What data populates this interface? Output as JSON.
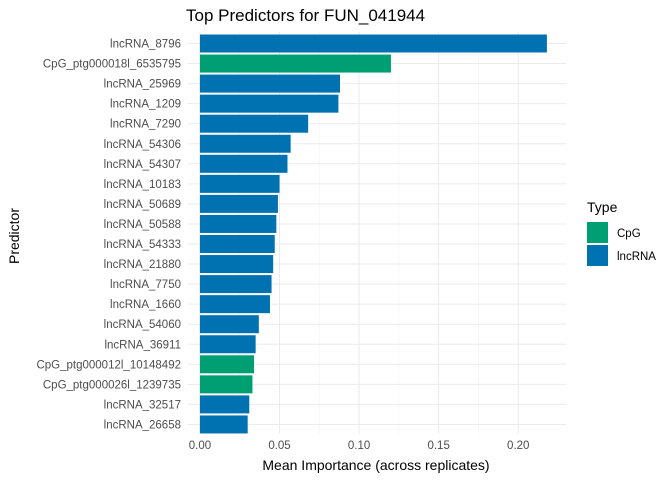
{
  "chart_data": {
    "type": "bar",
    "orientation": "horizontal",
    "title": "Top Predictors for FUN_041944",
    "xlabel": "Mean Importance (across replicates)",
    "ylabel": "Predictor",
    "xlim": [
      -0.0075,
      0.23
    ],
    "xticks": [
      0.0,
      0.05,
      0.1,
      0.15,
      0.2
    ],
    "xtick_labels": [
      "0.00",
      "0.05",
      "0.10",
      "0.15",
      "0.20"
    ],
    "grid": true,
    "legend": {
      "title": "Type",
      "position": "right",
      "entries": [
        {
          "label": "CpG",
          "color": "#009E73"
        },
        {
          "label": "lncRNA",
          "color": "#0072B2"
        }
      ]
    },
    "categories": [
      "lncRNA_8796",
      "CpG_ptg000018l_6535795",
      "lncRNA_25969",
      "lncRNA_1209",
      "lncRNA_7290",
      "lncRNA_54306",
      "lncRNA_54307",
      "lncRNA_10183",
      "lncRNA_50689",
      "lncRNA_50588",
      "lncRNA_54333",
      "lncRNA_21880",
      "lncRNA_7750",
      "lncRNA_1660",
      "lncRNA_54060",
      "lncRNA_36911",
      "CpG_ptg000012l_10148492",
      "CpG_ptg000026l_1239735",
      "lncRNA_32517",
      "lncRNA_26658"
    ],
    "values": [
      0.218,
      0.12,
      0.088,
      0.087,
      0.068,
      0.057,
      0.055,
      0.05,
      0.049,
      0.048,
      0.047,
      0.046,
      0.045,
      0.044,
      0.037,
      0.035,
      0.034,
      0.033,
      0.031,
      0.03
    ],
    "types": [
      "lncRNA",
      "CpG",
      "lncRNA",
      "lncRNA",
      "lncRNA",
      "lncRNA",
      "lncRNA",
      "lncRNA",
      "lncRNA",
      "lncRNA",
      "lncRNA",
      "lncRNA",
      "lncRNA",
      "lncRNA",
      "lncRNA",
      "lncRNA",
      "CpG",
      "CpG",
      "lncRNA",
      "lncRNA"
    ]
  }
}
